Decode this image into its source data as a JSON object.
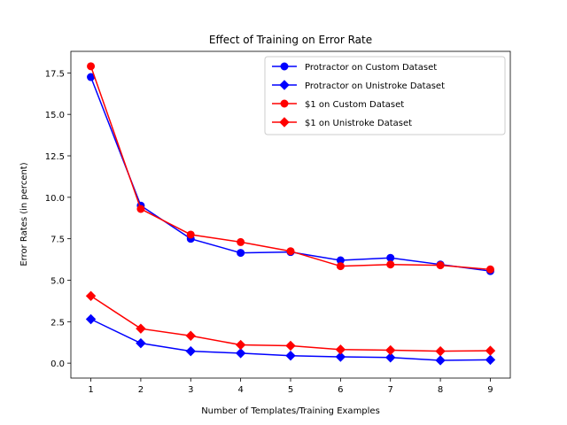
{
  "chart_data": {
    "type": "line",
    "title": "Effect of Training on Error Rate",
    "xlabel": "Number of Templates/Training Examples",
    "ylabel": "Error Rates (in percent)",
    "x": [
      1,
      2,
      3,
      4,
      5,
      6,
      7,
      8,
      9
    ],
    "xlim": [
      0.6,
      9.4
    ],
    "ylim": [
      -0.9,
      18.8
    ],
    "xticks": [
      1,
      2,
      3,
      4,
      5,
      6,
      7,
      8,
      9
    ],
    "yticks": [
      0.0,
      2.5,
      5.0,
      7.5,
      10.0,
      12.5,
      15.0,
      17.5
    ],
    "ytick_labels": [
      "0.0",
      "2.5",
      "5.0",
      "7.5",
      "10.0",
      "12.5",
      "15.0",
      "17.5"
    ],
    "grid": false,
    "legend_position": "top-right",
    "series": [
      {
        "name": "Protractor on Custom Dataset",
        "color": "#0000ff",
        "marker": "circle",
        "values": [
          17.25,
          9.5,
          7.5,
          6.65,
          6.7,
          6.2,
          6.35,
          5.95,
          5.55
        ]
      },
      {
        "name": "Protractor on Unistroke Dataset",
        "color": "#0000ff",
        "marker": "diamond",
        "values": [
          2.65,
          1.2,
          0.72,
          0.6,
          0.45,
          0.38,
          0.34,
          0.17,
          0.2
        ]
      },
      {
        "name": "$1 on Custom Dataset",
        "color": "#ff0000",
        "marker": "circle",
        "values": [
          17.9,
          9.3,
          7.75,
          7.3,
          6.75,
          5.85,
          5.95,
          5.9,
          5.65
        ]
      },
      {
        "name": "$1 on Unistroke Dataset",
        "color": "#ff0000",
        "marker": "diamond",
        "values": [
          4.05,
          2.08,
          1.65,
          1.1,
          1.05,
          0.82,
          0.78,
          0.72,
          0.75
        ]
      }
    ]
  }
}
